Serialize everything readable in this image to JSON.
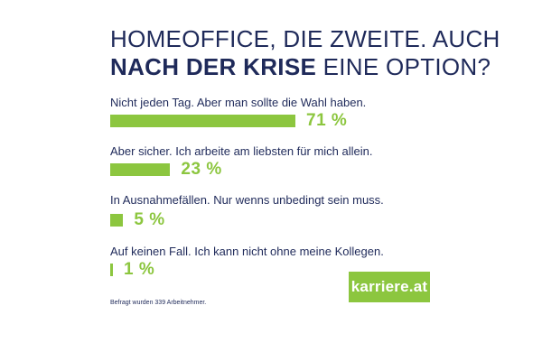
{
  "title": {
    "line1": "HOMEOFFICE, DIE ZWEITE. AUCH",
    "line2_bold": "NACH DER KRISE",
    "line2_rest": " EINE OPTION?"
  },
  "footnote": "Befragt wurden 339 Arbeitnehmer.",
  "logo_text": "karriere.at",
  "colors": {
    "bar": "#8cc63f",
    "text": "#1f2a5a"
  },
  "chart_data": {
    "type": "bar",
    "orientation": "horizontal",
    "categories": [
      "Nicht jeden Tag. Aber man sollte die Wahl haben.",
      "Aber sicher. Ich arbeite am liebsten für mich allein.",
      "In Ausnahmefällen. Nur wenns unbedingt sein muss.",
      "Auf keinen Fall. Ich kann nicht ohne meine Kollegen."
    ],
    "values": [
      71,
      23,
      5,
      1
    ],
    "value_labels": [
      "71 %",
      "23 %",
      "5 %",
      "1 %"
    ],
    "unit": "%"
  }
}
